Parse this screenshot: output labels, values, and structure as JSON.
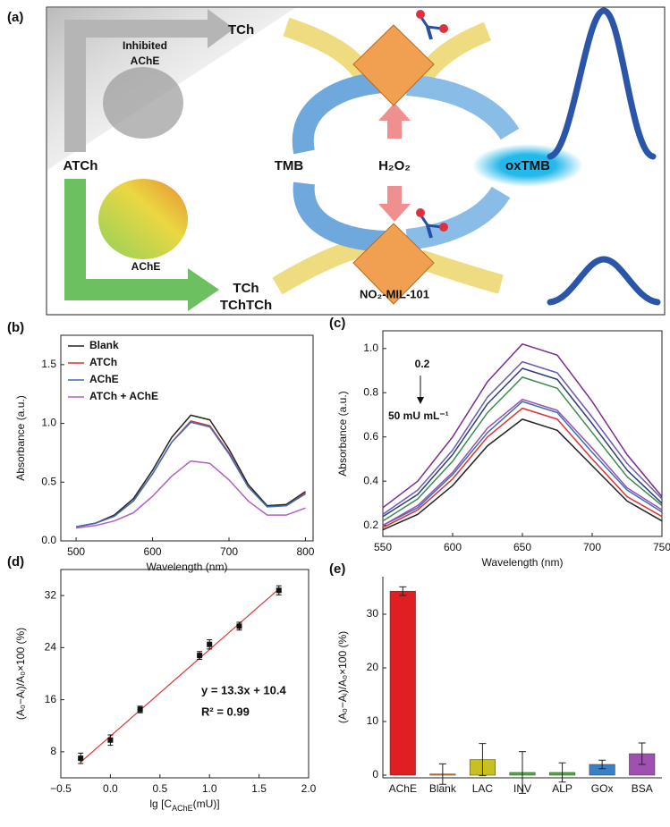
{
  "diagram": {
    "label": "(a)",
    "inhibited_product": "TCh",
    "inhibited_enzyme": [
      "Inhibited",
      "AChE"
    ],
    "substrate": "ATCh",
    "enzyme": "AChE",
    "products": [
      "TCh",
      "TChTCh"
    ],
    "reagent": "TMB",
    "oxidant": "H₂O₂",
    "product": "oxTMB",
    "nanozyme": "NO₂-MIL-101"
  },
  "chart_data": [
    {
      "type": "line",
      "label": "(b)",
      "x_label": "Wavelength (nm)",
      "y_label": "Absorbance (a.u.)",
      "x": [
        500,
        525,
        550,
        575,
        600,
        625,
        650,
        675,
        700,
        725,
        750,
        775,
        800
      ],
      "series": [
        {
          "name": "Blank",
          "color": "#222222",
          "values": [
            0.12,
            0.15,
            0.22,
            0.36,
            0.6,
            0.88,
            1.07,
            1.03,
            0.78,
            0.48,
            0.3,
            0.31,
            0.42
          ]
        },
        {
          "name": "ATCh",
          "color": "#e03030",
          "values": [
            0.12,
            0.15,
            0.21,
            0.34,
            0.57,
            0.84,
            1.02,
            0.98,
            0.75,
            0.46,
            0.29,
            0.3,
            0.41
          ]
        },
        {
          "name": "AChE",
          "color": "#3a6fb5",
          "values": [
            0.12,
            0.15,
            0.21,
            0.34,
            0.57,
            0.84,
            1.01,
            0.97,
            0.74,
            0.46,
            0.29,
            0.3,
            0.4
          ]
        },
        {
          "name": "ATCh + AChE",
          "color": "#b060c0",
          "values": [
            0.11,
            0.13,
            0.17,
            0.24,
            0.38,
            0.55,
            0.68,
            0.66,
            0.52,
            0.34,
            0.22,
            0.22,
            0.28
          ]
        }
      ],
      "xlim": [
        480,
        810
      ],
      "xticks": [
        500,
        600,
        700,
        800
      ],
      "ylim": [
        0,
        1.75
      ],
      "yticks": [
        {
          "value": 0,
          "label": "0.0"
        },
        0.5,
        {
          "value": 1,
          "label": "1.0"
        },
        1.5
      ],
      "legend": "upper left"
    },
    {
      "type": "line",
      "label": "(c)",
      "x_label": "Wavelength (nm)",
      "y_label": "Absorbance (a.u.)",
      "x": [
        550,
        575,
        600,
        625,
        650,
        675,
        700,
        725,
        750
      ],
      "series": [
        {
          "color": "#222222",
          "values": [
            0.18,
            0.25,
            0.38,
            0.56,
            0.68,
            0.63,
            0.47,
            0.31,
            0.22
          ]
        },
        {
          "color": "#e03030",
          "values": [
            0.19,
            0.27,
            0.41,
            0.6,
            0.73,
            0.68,
            0.5,
            0.33,
            0.24
          ]
        },
        {
          "color": "#3a6fb5",
          "values": [
            0.2,
            0.28,
            0.43,
            0.62,
            0.76,
            0.71,
            0.53,
            0.36,
            0.26
          ]
        },
        {
          "color": "#9a4fb0",
          "values": [
            0.2,
            0.29,
            0.44,
            0.64,
            0.77,
            0.72,
            0.55,
            0.37,
            0.27
          ]
        },
        {
          "color": "#3a8a4a",
          "values": [
            0.22,
            0.32,
            0.49,
            0.71,
            0.87,
            0.82,
            0.62,
            0.42,
            0.29
          ]
        },
        {
          "color": "#2a3f7a",
          "values": [
            0.24,
            0.34,
            0.52,
            0.75,
            0.91,
            0.86,
            0.66,
            0.45,
            0.3
          ]
        },
        {
          "color": "#6a5ab8",
          "values": [
            0.25,
            0.36,
            0.54,
            0.78,
            0.94,
            0.89,
            0.69,
            0.48,
            0.32
          ]
        },
        {
          "color": "#7a2a8a",
          "values": [
            0.28,
            0.4,
            0.6,
            0.85,
            1.02,
            0.97,
            0.76,
            0.52,
            0.33
          ]
        }
      ],
      "xlim": [
        550,
        750
      ],
      "xticks": [
        550,
        600,
        650,
        700,
        750
      ],
      "ylim": [
        0.15,
        1.08
      ],
      "yticks": [
        0.2,
        0.4,
        0.6,
        0.8,
        {
          "value": 1,
          "label": "1.0"
        }
      ],
      "annotations": [
        "0.2",
        "50 mU mL⁻¹"
      ]
    },
    {
      "type": "scatter",
      "label": "(d)",
      "x_label": {
        "main": "lg [C",
        "sub": "AChE",
        "tail": "(mU)]"
      },
      "y_label": "(A₀−Aᵢ)/A₀×100 (%)",
      "x": [
        -0.3,
        0,
        0.3,
        0.9,
        1,
        1.3,
        1.7
      ],
      "values": [
        7,
        9.8,
        14.5,
        22.8,
        24.5,
        27.3,
        32.8
      ],
      "errors": [
        0.8,
        0.8,
        0.5,
        0.6,
        0.7,
        0.6,
        0.7
      ],
      "color": "#111111",
      "fit_line": {
        "x": [
          -0.3,
          1.7
        ],
        "y": [
          6.41,
          33.01
        ],
        "color": "#e03030"
      },
      "xlim": [
        -0.5,
        2.0
      ],
      "xticks": [
        {
          "value": -0.5,
          "label": "−0.5"
        },
        {
          "value": 0,
          "label": "0.0"
        },
        0.5,
        {
          "value": 1,
          "label": "1.0"
        },
        1.5,
        {
          "value": 2,
          "label": "2.0"
        }
      ],
      "ylim": [
        4,
        36
      ],
      "yticks": [
        8,
        16,
        24,
        32
      ],
      "annotations": [
        "y = 13.3x + 10.4",
        "R² = 0.99"
      ]
    },
    {
      "type": "bar",
      "label": "(e)",
      "y_label": "(A₀−Aᵢ)/A₀×100 (%)",
      "categories": [
        "AChE",
        "Blank",
        "LAC",
        "INV",
        "ALP",
        "GOx",
        "BSA"
      ],
      "values": [
        34.3,
        0.2,
        2.9,
        0.5,
        0.5,
        2.0,
        4.0
      ],
      "errors": [
        0.8,
        1.9,
        3.0,
        3.9,
        1.8,
        0.8,
        2.0
      ],
      "colors": [
        "#e02020",
        "#e07a30",
        "#c8c020",
        "#50b040",
        "#50b040",
        "#3a80c8",
        "#a050b0"
      ],
      "ylim": [
        -0.5,
        37
      ],
      "yticks": [
        0,
        10,
        20,
        30
      ]
    }
  ]
}
